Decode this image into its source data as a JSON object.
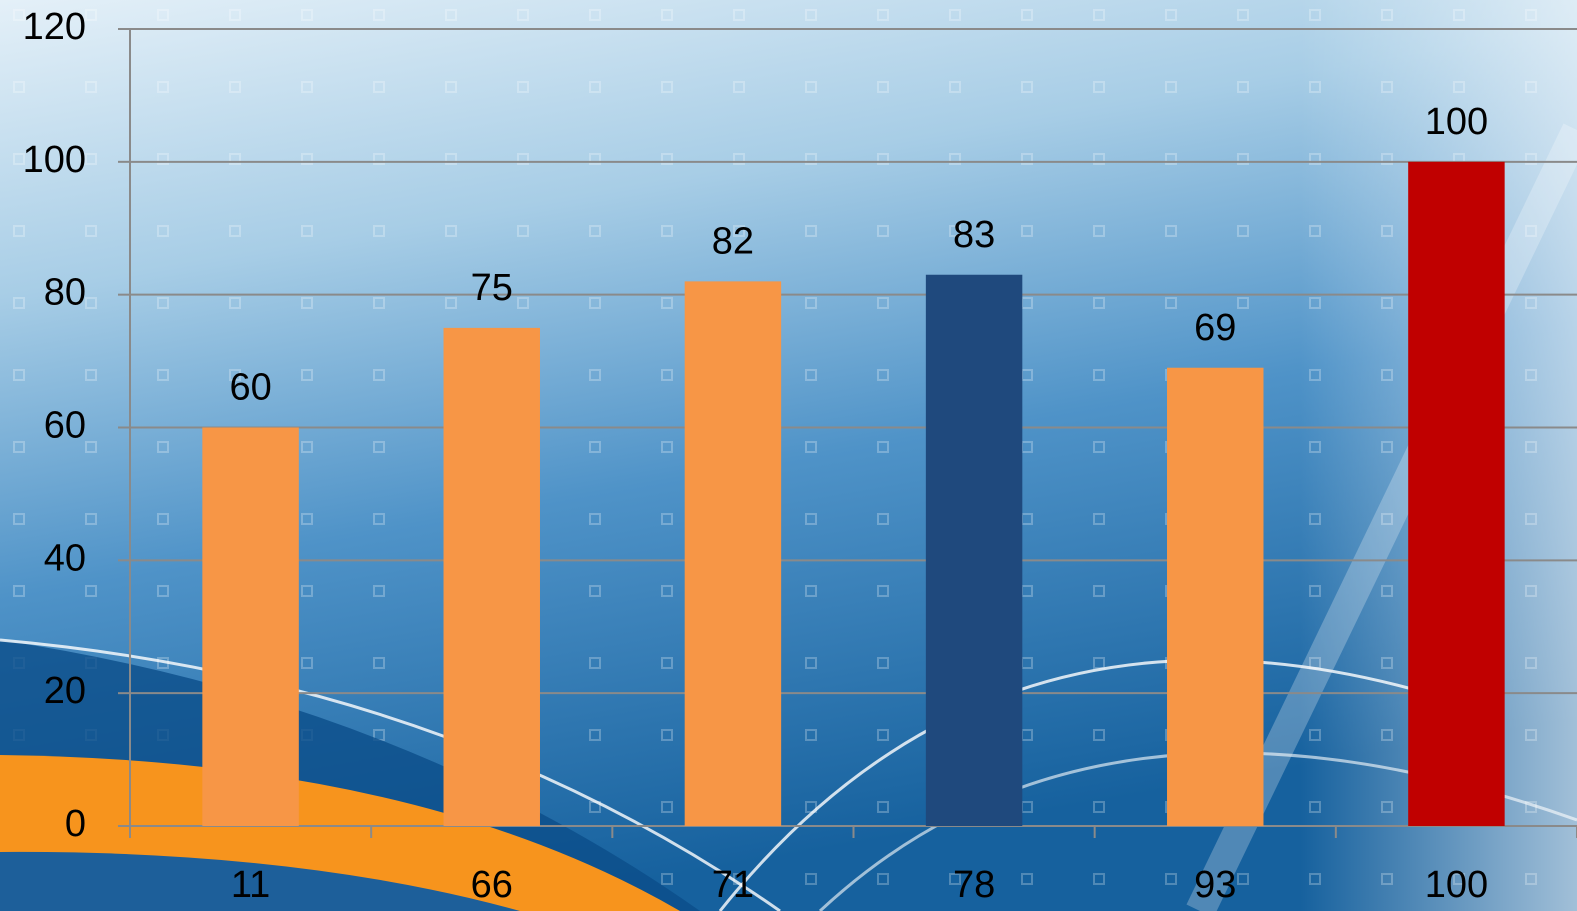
{
  "chart_data": {
    "type": "bar",
    "categories": [
      "11",
      "66",
      "71",
      "78",
      "93",
      "100"
    ],
    "values": [
      60,
      75,
      82,
      83,
      69,
      100
    ],
    "colors": [
      "#f79646",
      "#f79646",
      "#f79646",
      "#1f497d",
      "#f79646",
      "#c00000"
    ],
    "ylim": [
      0,
      120
    ],
    "yticks": [
      0,
      20,
      40,
      60,
      80,
      100,
      120
    ],
    "grid": true
  }
}
